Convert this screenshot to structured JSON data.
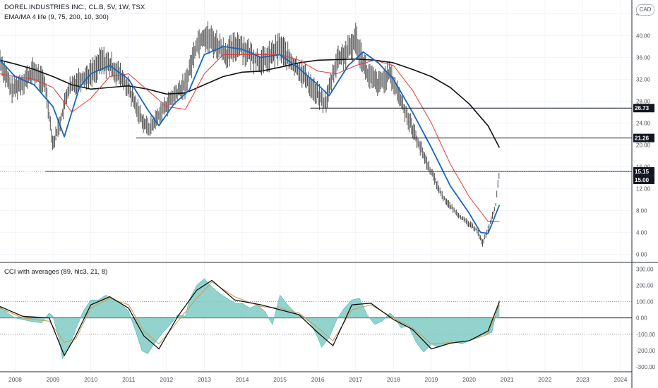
{
  "header": {
    "title": "DOREL INDUSTRIES INC., CL.B, 5V, 1W, TSX",
    "currency": "CAD",
    "indicator1": "EMA/MA 4 life (9, 75, 200, 10, 300)",
    "indicator2": "CCI with averages (89, hlc3, 21, 8)"
  },
  "colors": {
    "price_bar": "#3c3c3c",
    "ema_fast": "#1565c0",
    "ma_mid": "#e53935",
    "ma_slow": "#111111",
    "cci_fill": "#80cbc4",
    "cci_line": "#111111",
    "cci_avg": "#c9a15a",
    "tag_bg": "#131722"
  },
  "chart_data": [
    {
      "type": "line",
      "title": "DOREL INDUSTRIES INC., CL.B, 5V, 1W, TSX",
      "x_ticks": [
        "2008",
        "2009",
        "2010",
        "2011",
        "2012",
        "2013",
        "2014",
        "2015",
        "2016",
        "2017",
        "2018",
        "2019",
        "2020",
        "2021",
        "2022",
        "2023",
        "2024"
      ],
      "y_ticks": [
        "0.00",
        "4.00",
        "8.00",
        "12.00",
        "16.00",
        "20.00",
        "24.00",
        "28.00",
        "32.00",
        "36.00",
        "40.00",
        "44.00"
      ],
      "ylim": [
        -1.5,
        46.5
      ],
      "xlim": [
        2007.6,
        2024.3
      ],
      "series": [
        {
          "key": "price",
          "style": "bars",
          "x": [
            2007.6,
            2007.9,
            2008.2,
            2008.5,
            2008.8,
            2009.0,
            2009.2,
            2009.4,
            2009.7,
            2010.0,
            2010.3,
            2010.6,
            2010.9,
            2011.2,
            2011.4,
            2011.55,
            2011.8,
            2012.2,
            2012.5,
            2012.8,
            2013.0,
            2013.3,
            2013.6,
            2013.9,
            2014.2,
            2014.5,
            2014.8,
            2015.0,
            2015.3,
            2015.6,
            2015.9,
            2016.2,
            2016.5,
            2016.8,
            2017.0,
            2017.3,
            2017.6,
            2017.9,
            2018.2,
            2018.5,
            2018.8,
            2019.0,
            2019.3,
            2019.6,
            2019.9,
            2020.2,
            2020.35,
            2020.5,
            2020.7,
            2020.8
          ],
          "values": [
            35.5,
            30.0,
            31.5,
            33.5,
            31.0,
            20.0,
            24.5,
            30.0,
            32.0,
            33.0,
            35.5,
            34.0,
            31.5,
            27.0,
            24.0,
            23.0,
            25.5,
            29.0,
            31.0,
            38.5,
            40.0,
            38.5,
            36.5,
            38.5,
            36.5,
            35.0,
            36.5,
            38.0,
            35.0,
            33.0,
            30.0,
            27.5,
            35.5,
            37.0,
            39.5,
            33.0,
            31.0,
            33.0,
            28.0,
            23.0,
            18.0,
            15.0,
            10.5,
            8.0,
            6.0,
            4.5,
            2.0,
            4.5,
            9.0,
            15.0
          ]
        },
        {
          "key": "ema_fast",
          "style": "line",
          "x": [
            2007.6,
            2008.0,
            2008.5,
            2009.0,
            2009.3,
            2009.7,
            2010.0,
            2010.5,
            2011.0,
            2011.5,
            2011.8,
            2012.2,
            2012.6,
            2013.0,
            2013.5,
            2014.0,
            2014.5,
            2015.0,
            2015.5,
            2016.0,
            2016.3,
            2016.8,
            2017.2,
            2017.6,
            2018.0,
            2018.5,
            2019.0,
            2019.5,
            2020.0,
            2020.3,
            2020.5,
            2020.8
          ],
          "values": [
            35.5,
            32.5,
            31.0,
            27.0,
            21.5,
            30.5,
            33.0,
            34.5,
            32.0,
            26.5,
            23.5,
            27.5,
            30.0,
            36.5,
            38.0,
            37.5,
            36.0,
            36.5,
            34.0,
            31.0,
            29.0,
            34.5,
            37.0,
            35.0,
            32.0,
            26.0,
            19.5,
            12.5,
            7.5,
            4.0,
            3.8,
            9.0
          ]
        },
        {
          "key": "ma_mid",
          "style": "line",
          "x": [
            2007.6,
            2008.0,
            2008.5,
            2009.0,
            2009.5,
            2010.0,
            2010.5,
            2011.0,
            2011.5,
            2012.0,
            2012.5,
            2013.0,
            2013.5,
            2014.0,
            2014.5,
            2015.0,
            2015.5,
            2016.0,
            2016.5,
            2017.0,
            2017.5,
            2018.0,
            2018.5,
            2019.0,
            2019.5,
            2020.0,
            2020.5,
            2020.8
          ],
          "values": [
            33.0,
            32.5,
            32.0,
            30.5,
            26.0,
            28.5,
            32.5,
            33.0,
            30.0,
            27.0,
            26.5,
            33.0,
            36.5,
            36.5,
            36.5,
            36.5,
            35.5,
            33.5,
            33.0,
            34.5,
            35.5,
            34.5,
            30.0,
            24.0,
            16.5,
            10.5,
            6.0,
            6.0
          ]
        },
        {
          "key": "ma_slow",
          "style": "line",
          "x": [
            2007.6,
            2008.0,
            2008.5,
            2009.0,
            2009.5,
            2010.0,
            2010.5,
            2011.0,
            2011.5,
            2012.0,
            2012.5,
            2013.0,
            2013.5,
            2014.0,
            2014.5,
            2015.0,
            2015.5,
            2016.0,
            2016.5,
            2017.0,
            2017.5,
            2018.0,
            2018.5,
            2019.0,
            2019.5,
            2020.0,
            2020.5,
            2020.8
          ],
          "values": [
            35.5,
            34.8,
            33.8,
            32.5,
            31.0,
            30.2,
            30.5,
            30.8,
            30.2,
            29.3,
            29.5,
            31.0,
            32.5,
            33.3,
            33.5,
            34.2,
            35.0,
            35.5,
            35.6,
            35.7,
            35.5,
            35.0,
            33.8,
            32.5,
            30.5,
            27.5,
            23.5,
            19.5
          ]
        }
      ],
      "horizontal_levels": [
        {
          "value": 26.73,
          "x_start": 2015.8,
          "label": "26.73"
        },
        {
          "value": 21.26,
          "x_start": 2011.2,
          "label": "21.26"
        },
        {
          "value": 15.15,
          "x_start": 2008.8,
          "label": "15.15"
        }
      ],
      "last_price": {
        "value": 15.15,
        "label": "15.15"
      },
      "tag": {
        "label": "15.00"
      }
    },
    {
      "type": "area",
      "title": "CCI with averages (89, hlc3, 21, 8)",
      "y_ticks": [
        "300.00",
        "200.00",
        "100.00",
        "0.00",
        "-100.00",
        "-200.00",
        "-300.00"
      ],
      "ylim": [
        -330,
        340
      ],
      "reference_lines": [
        100,
        0,
        -100
      ],
      "series": [
        {
          "key": "cci",
          "style": "area",
          "x": [
            2007.6,
            2007.8,
            2008.0,
            2008.4,
            2008.7,
            2008.9,
            2009.0,
            2009.15,
            2009.25,
            2009.4,
            2009.6,
            2009.8,
            2010.0,
            2010.2,
            2010.4,
            2010.6,
            2010.8,
            2011.0,
            2011.2,
            2011.35,
            2011.5,
            2011.7,
            2011.9,
            2012.1,
            2012.3,
            2012.5,
            2012.6,
            2012.8,
            2013.0,
            2013.2,
            2013.4,
            2013.6,
            2013.8,
            2014.0,
            2014.2,
            2014.4,
            2014.6,
            2014.8,
            2015.0,
            2015.2,
            2015.4,
            2015.6,
            2015.8,
            2016.0,
            2016.1,
            2016.3,
            2016.5,
            2016.7,
            2016.9,
            2017.1,
            2017.3,
            2017.5,
            2017.7,
            2017.9,
            2018.0,
            2018.2,
            2018.4,
            2018.6,
            2018.8,
            2019.0,
            2019.2,
            2019.4,
            2019.6,
            2019.8,
            2020.0,
            2020.2,
            2020.4,
            2020.6,
            2020.7,
            2020.8
          ],
          "values": [
            70,
            30,
            0,
            -20,
            -30,
            30,
            10,
            -120,
            -250,
            -190,
            -70,
            40,
            110,
            110,
            140,
            110,
            90,
            40,
            -90,
            -200,
            -220,
            -150,
            -90,
            -40,
            20,
            10,
            110,
            200,
            240,
            190,
            150,
            120,
            90,
            90,
            60,
            80,
            40,
            -40,
            140,
            80,
            30,
            10,
            -30,
            -120,
            -180,
            -120,
            -10,
            60,
            110,
            120,
            20,
            -40,
            -20,
            30,
            10,
            -60,
            -50,
            -150,
            -210,
            -160,
            -180,
            -160,
            -140,
            -160,
            -140,
            -120,
            -100,
            -90,
            20,
            110
          ]
        },
        {
          "key": "cci_avg_slow",
          "style": "line",
          "x": [
            2007.6,
            2008.2,
            2008.9,
            2009.3,
            2009.6,
            2010.0,
            2010.5,
            2011.0,
            2011.4,
            2011.8,
            2012.3,
            2012.8,
            2013.2,
            2013.8,
            2014.5,
            2015.0,
            2015.5,
            2016.0,
            2016.4,
            2016.9,
            2017.4,
            2018.0,
            2018.5,
            2019.0,
            2019.5,
            2020.0,
            2020.5,
            2020.8
          ],
          "values": [
            60,
            0,
            -20,
            -150,
            -130,
            60,
            120,
            80,
            -80,
            -160,
            -20,
            120,
            220,
            130,
            70,
            60,
            30,
            -60,
            -140,
            50,
            80,
            0,
            -60,
            -160,
            -150,
            -140,
            -100,
            80
          ]
        },
        {
          "key": "cci_avg_fast",
          "style": "line",
          "x": [
            2007.6,
            2008.2,
            2008.9,
            2009.3,
            2009.6,
            2010.0,
            2010.5,
            2011.0,
            2011.4,
            2011.8,
            2012.3,
            2012.8,
            2013.2,
            2013.8,
            2014.5,
            2015.0,
            2015.5,
            2016.0,
            2016.4,
            2016.9,
            2017.4,
            2018.0,
            2018.5,
            2019.0,
            2019.5,
            2020.0,
            2020.5,
            2020.8
          ],
          "values": [
            70,
            10,
            0,
            -230,
            -110,
            80,
            130,
            60,
            -110,
            -190,
            10,
            170,
            230,
            110,
            80,
            50,
            20,
            -90,
            -170,
            80,
            90,
            -10,
            -70,
            -190,
            -155,
            -140,
            -80,
            100
          ]
        }
      ]
    }
  ]
}
